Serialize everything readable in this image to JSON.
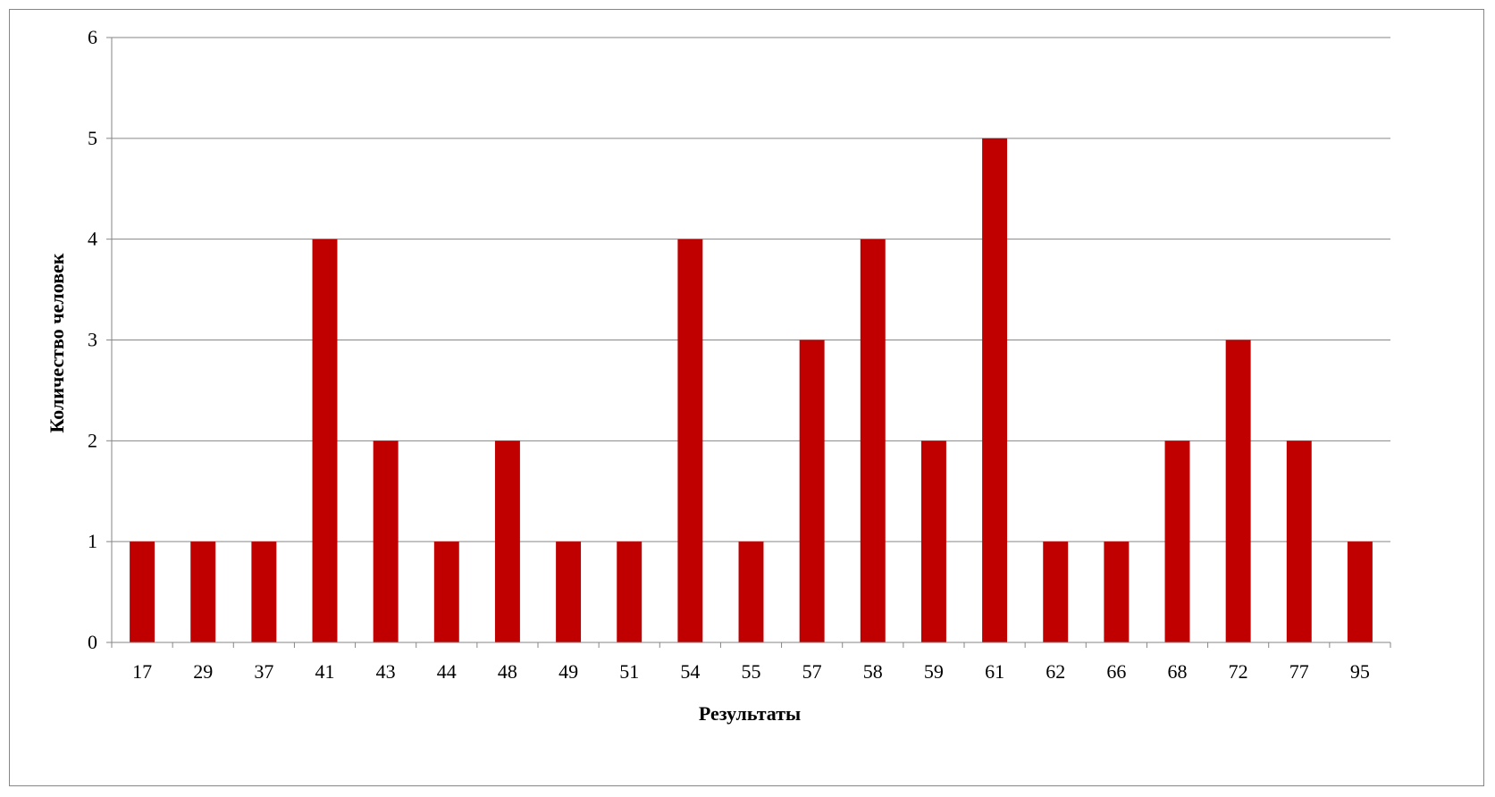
{
  "chart_data": {
    "type": "bar",
    "title": "",
    "xlabel": "Результаты",
    "ylabel": "Количество человек",
    "categories": [
      "17",
      "29",
      "37",
      "41",
      "43",
      "44",
      "48",
      "49",
      "51",
      "54",
      "55",
      "57",
      "58",
      "59",
      "61",
      "62",
      "66",
      "68",
      "72",
      "77",
      "95"
    ],
    "values": [
      1,
      1,
      1,
      4,
      2,
      1,
      2,
      1,
      1,
      4,
      1,
      3,
      4,
      2,
      5,
      1,
      1,
      2,
      3,
      2,
      1
    ],
    "ylim": [
      0,
      6
    ],
    "yticks": [
      "0",
      "1",
      "2",
      "3",
      "4",
      "5",
      "6"
    ],
    "grid": true,
    "legend": "none",
    "bar_color": "#C00000",
    "grid_color": "#868686"
  }
}
